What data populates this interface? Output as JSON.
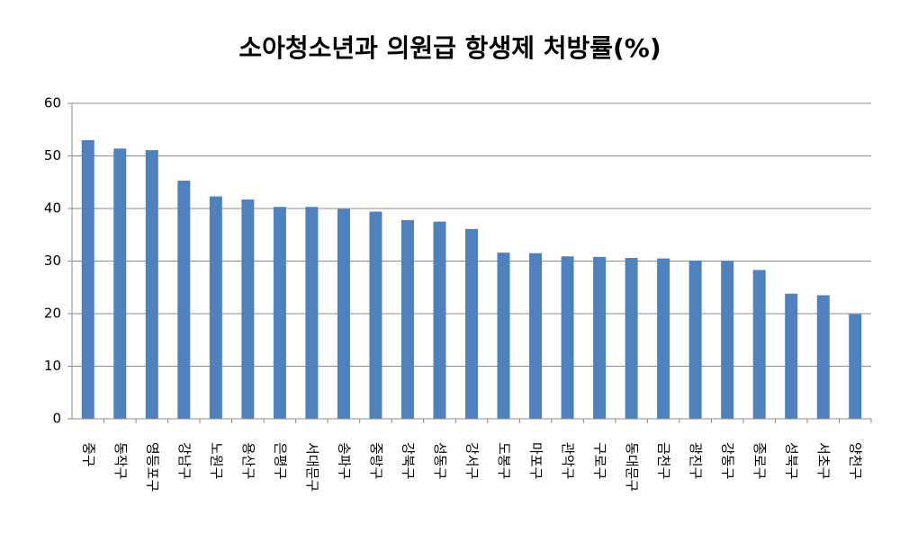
{
  "chart_data": {
    "type": "bar",
    "title": "소아청소년과 의원급 항생제 처방률(%)",
    "categories": [
      "중구",
      "동작구",
      "영등포구",
      "강남구",
      "노원구",
      "용산구",
      "은평구",
      "서대문구",
      "송파구",
      "중랑구",
      "강북구",
      "성동구",
      "강서구",
      "도봉구",
      "마포구",
      "관악구",
      "구로구",
      "동대문구",
      "금천구",
      "광진구",
      "강동구",
      "종로구",
      "성북구",
      "서초구",
      "양천구"
    ],
    "values": [
      53.0,
      51.4,
      51.1,
      45.3,
      42.3,
      41.7,
      40.3,
      40.3,
      39.9,
      39.4,
      37.8,
      37.5,
      36.1,
      31.6,
      31.5,
      30.9,
      30.8,
      30.6,
      30.5,
      30.1,
      30.0,
      28.3,
      23.8,
      23.5,
      19.9
    ],
    "color": "#4f81bd",
    "ylim": [
      0,
      60
    ],
    "yticks": [
      0,
      10,
      20,
      30,
      40,
      50,
      60
    ],
    "grid": true
  }
}
